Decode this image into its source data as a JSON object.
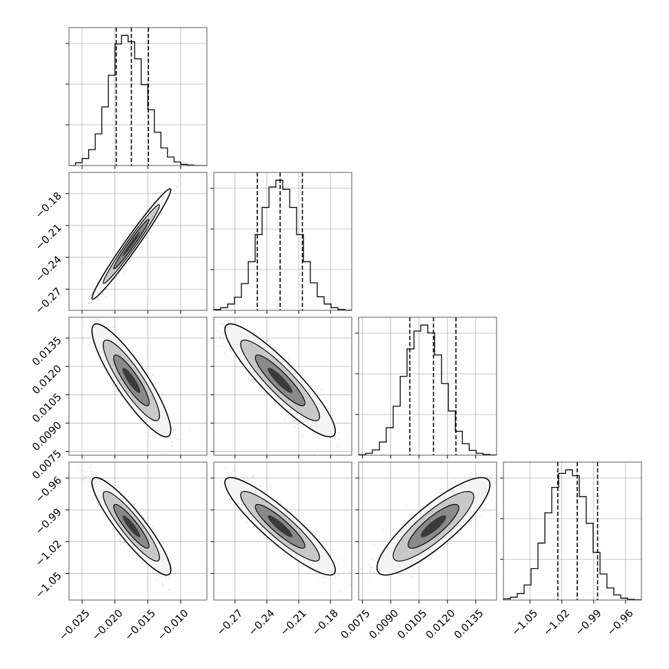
{
  "chart_data": {
    "type": "corner",
    "parameters": [
      {
        "label": "",
        "range": [
          -0.027,
          -0.006
        ],
        "ticks": [
          -0.025,
          -0.02,
          -0.015,
          -0.01
        ],
        "tick_labels": [
          "−0.025",
          "−0.020",
          "−0.015",
          "−0.010"
        ],
        "quantiles": [
          -0.0198,
          -0.0175,
          -0.0149
        ],
        "hist_edges": [
          -0.027,
          -0.026,
          -0.025,
          -0.024,
          -0.023,
          -0.022,
          -0.021,
          -0.02,
          -0.019,
          -0.018,
          -0.017,
          -0.016,
          -0.015,
          -0.014,
          -0.013,
          -0.012,
          -0.011,
          -0.01,
          -0.009,
          -0.008,
          -0.007,
          -0.006
        ],
        "hist_counts": [
          0,
          12,
          30,
          68,
          135,
          250,
          385,
          518,
          555,
          528,
          455,
          345,
          238,
          142,
          75,
          36,
          15,
          5,
          2,
          0,
          0
        ]
      },
      {
        "label": "",
        "range": [
          -0.29,
          -0.16
        ],
        "ticks": [
          -0.27,
          -0.24,
          -0.21,
          -0.18
        ],
        "tick_labels": [
          "−0.27",
          "−0.24",
          "−0.21",
          "−0.18"
        ],
        "quantiles": [
          -0.249,
          -0.2275,
          -0.2065
        ],
        "hist_edges": [
          -0.29,
          -0.2835,
          -0.277,
          -0.2705,
          -0.264,
          -0.2575,
          -0.251,
          -0.2445,
          -0.238,
          -0.2315,
          -0.225,
          -0.2185,
          -0.212,
          -0.2055,
          -0.199,
          -0.1925,
          -0.186,
          -0.1795,
          -0.173,
          -0.1665,
          -0.16
        ],
        "hist_counts": [
          4,
          12,
          28,
          58,
          118,
          215,
          335,
          455,
          545,
          575,
          535,
          455,
          335,
          215,
          122,
          60,
          28,
          12,
          4,
          1
        ]
      },
      {
        "label": "",
        "range": [
          0.0073,
          0.0146
        ],
        "ticks": [
          0.0075,
          0.009,
          0.0105,
          0.012,
          0.0135
        ],
        "tick_labels": [
          "0.0075",
          "0.0090",
          "0.0105",
          "0.0120",
          "0.0135"
        ],
        "quantiles": [
          0.01001,
          0.01126,
          0.01245
        ],
        "hist_edges": [
          0.0073,
          0.00767,
          0.00803,
          0.0084,
          0.00876,
          0.00913,
          0.0095,
          0.00986,
          0.01023,
          0.01059,
          0.01096,
          0.01132,
          0.01169,
          0.01205,
          0.01242,
          0.01279,
          0.01315,
          0.01352,
          0.01388,
          0.01425,
          0.0146
        ],
        "hist_counts": [
          2,
          8,
          22,
          55,
          115,
          205,
          330,
          445,
          520,
          545,
          512,
          420,
          300,
          185,
          100,
          48,
          20,
          8,
          3,
          1
        ]
      },
      {
        "label": "",
        "range": [
          -1.075,
          -0.945
        ],
        "ticks": [
          -1.05,
          -1.02,
          -0.99,
          -0.96
        ],
        "tick_labels": [
          "−1.05",
          "−1.02",
          "−0.99",
          "−0.96"
        ],
        "quantiles": [
          -1.0238,
          -1.0055,
          -0.9863
        ],
        "hist_edges": [
          -1.075,
          -1.0685,
          -1.062,
          -1.0555,
          -1.049,
          -1.0425,
          -1.036,
          -1.0295,
          -1.023,
          -1.0165,
          -1.01,
          -1.0035,
          -0.997,
          -0.9905,
          -0.984,
          -0.9775,
          -0.971,
          -0.9645,
          -0.958,
          -0.9515,
          -0.945
        ],
        "hist_counts": [
          5,
          12,
          28,
          65,
          135,
          245,
          375,
          485,
          545,
          560,
          535,
          445,
          330,
          205,
          112,
          52,
          22,
          8,
          3,
          1
        ]
      }
    ],
    "y_tick_labels": {
      "row1": [
        "−0.18",
        "−0.21",
        "−0.24",
        "−0.27"
      ],
      "row2": [
        "0.0135",
        "0.0120",
        "0.0105",
        "0.0090",
        "0.0075"
      ],
      "row3": [
        "−0.96",
        "−0.99",
        "−1.02",
        "−1.05"
      ]
    },
    "correlations": [
      [
        1.0,
        0.98,
        -0.88,
        -0.9
      ],
      [
        0.98,
        1.0,
        -0.9,
        -0.9
      ],
      [
        -0.88,
        -0.9,
        1.0,
        0.85
      ],
      [
        -0.9,
        -0.9,
        0.85,
        1.0
      ]
    ],
    "grid": true,
    "colors": {
      "line": "#000000",
      "grid": "#b0b0b0",
      "scatter": "#8c8c8c"
    }
  }
}
